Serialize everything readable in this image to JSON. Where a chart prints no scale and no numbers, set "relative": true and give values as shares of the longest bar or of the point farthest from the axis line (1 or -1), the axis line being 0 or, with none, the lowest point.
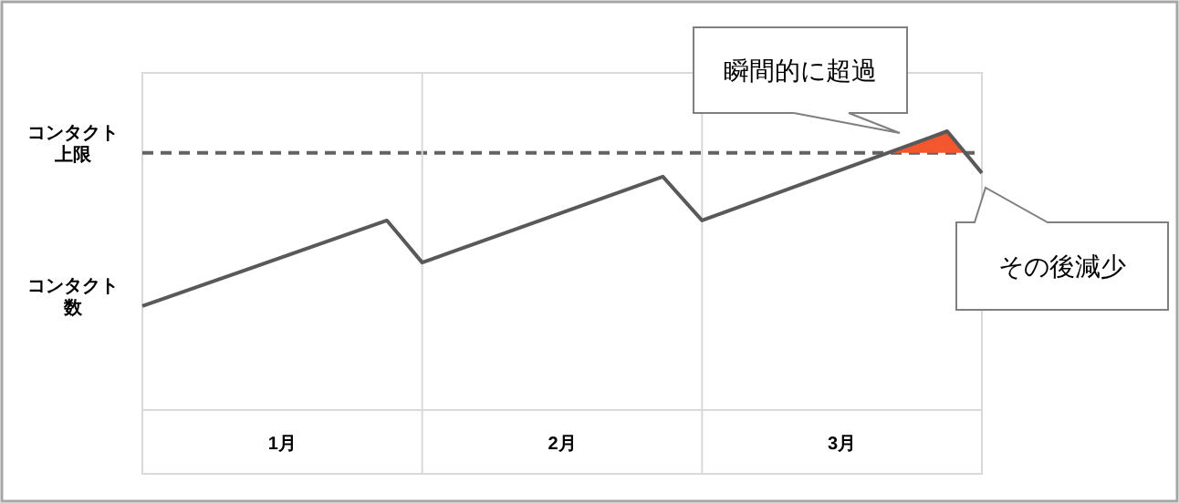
{
  "chart_data": {
    "type": "line",
    "relative": true,
    "ylabel": "コンタクト数",
    "x": [
      0,
      0.874,
      1.0,
      1.86,
      2.0,
      2.876,
      3.0
    ],
    "xlim": [
      0,
      3
    ],
    "xticks": [
      {
        "value": 0.5,
        "label": "1月"
      },
      {
        "value": 1.5,
        "label": "2月"
      },
      {
        "value": 2.5,
        "label": "3月"
      }
    ],
    "series": [
      {
        "color": "#595959",
        "values": [
          0.373,
          0.68,
          0.529,
          0.837,
          0.68,
          1.0,
          0.85
        ]
      }
    ],
    "ref_lines": [
      {
        "axis": "y",
        "value": 0.922,
        "label": "コンタクト上限",
        "color": "#636363",
        "line_style": "dashed"
      },
      {
        "axis": "x",
        "value": 1,
        "color": "#d9d9d9",
        "line_style": "solid"
      },
      {
        "axis": "x",
        "value": 2,
        "color": "#d9d9d9",
        "line_style": "solid"
      }
    ],
    "annotations": [
      "瞬間的に超過",
      "その後減少"
    ]
  }
}
